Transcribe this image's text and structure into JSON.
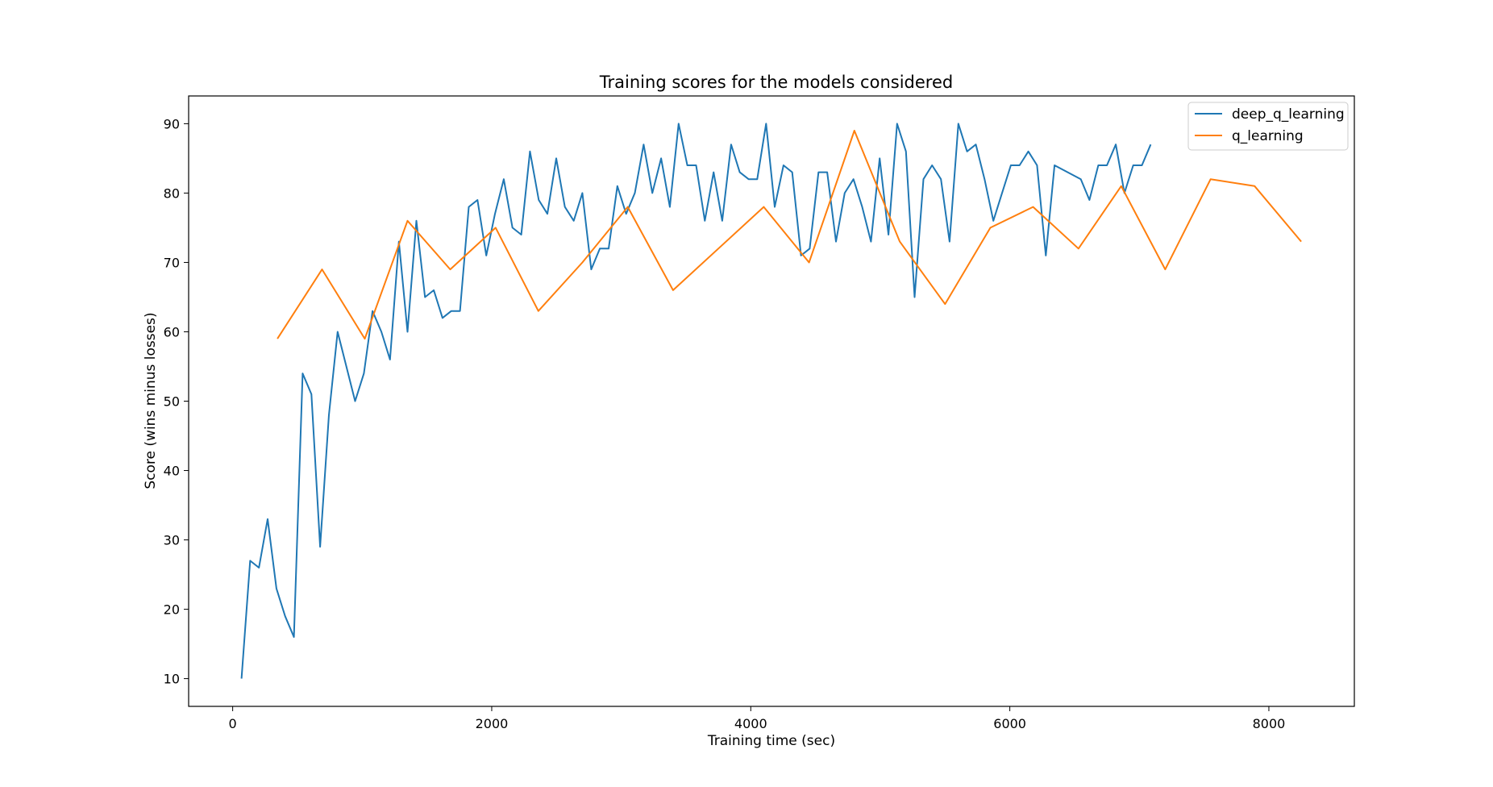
{
  "chart_data": {
    "type": "line",
    "title": "Training scores for the models considered",
    "xlabel": "Training time (sec)",
    "ylabel": "Score (wins minus losses)",
    "xlim": [
      -340,
      8660
    ],
    "ylim": [
      6,
      94
    ],
    "xticks": [
      0,
      2000,
      4000,
      6000,
      8000
    ],
    "yticks": [
      10,
      20,
      30,
      40,
      50,
      60,
      70,
      80,
      90
    ],
    "grid": false,
    "legend_position": "top-right",
    "series": [
      {
        "name": "deep_q_learning",
        "color": "#1f77b4",
        "x": [
          68,
          135,
          203,
          270,
          338,
          405,
          473,
          540,
          608,
          675,
          743,
          810,
          945,
          1013,
          1080,
          1148,
          1215,
          1283,
          1350,
          1418,
          1485,
          1553,
          1620,
          1688,
          1755,
          1823,
          1890,
          1958,
          2025,
          2093,
          2160,
          2228,
          2295,
          2363,
          2430,
          2498,
          2565,
          2633,
          2700,
          2768,
          2835,
          2903,
          2970,
          3038,
          3105,
          3173,
          3240,
          3308,
          3375,
          3443,
          3510,
          3578,
          3645,
          3713,
          3780,
          3848,
          3915,
          3983,
          4050,
          4118,
          4185,
          4253,
          4320,
          4388,
          4455,
          4523,
          4590,
          4658,
          4725,
          4793,
          4860,
          4928,
          4995,
          5063,
          5130,
          5198,
          5265,
          5333,
          5400,
          5468,
          5535,
          5603,
          5670,
          5738,
          5805,
          5873,
          5940,
          6008,
          6075,
          6143,
          6210,
          6278,
          6345,
          6548,
          6615,
          6683,
          6750,
          6818,
          6885,
          6953,
          7020,
          7088
        ],
        "y": [
          10,
          27,
          26,
          33,
          23,
          19,
          16,
          54,
          51,
          29,
          48,
          60,
          50,
          54,
          63,
          60,
          56,
          73,
          60,
          76,
          65,
          66,
          62,
          63,
          63,
          78,
          79,
          71,
          77,
          82,
          75,
          74,
          86,
          79,
          77,
          85,
          78,
          76,
          80,
          69,
          72,
          72,
          81,
          77,
          80,
          87,
          80,
          85,
          78,
          90,
          84,
          84,
          76,
          83,
          76,
          87,
          83,
          82,
          82,
          90,
          78,
          84,
          83,
          71,
          72,
          83,
          83,
          73,
          80,
          82,
          78,
          73,
          85,
          74,
          90,
          86,
          65,
          82,
          84,
          82,
          73,
          90,
          86,
          87,
          82,
          76,
          80,
          84,
          84,
          86,
          84,
          71,
          84,
          82,
          79,
          84,
          84,
          87,
          80,
          84,
          84,
          87
        ]
      },
      {
        "name": "q_learning",
        "color": "#ff7f0e",
        "x": [
          345,
          690,
          1020,
          1350,
          1680,
          2030,
          2360,
          2700,
          3050,
          3400,
          3750,
          4100,
          4450,
          4800,
          5150,
          5500,
          5850,
          6180,
          6530,
          6860,
          7200,
          7550,
          7890,
          8250
        ],
        "y": [
          59,
          69,
          59,
          76,
          69,
          75,
          63,
          70,
          78,
          66,
          72,
          78,
          70,
          89,
          73,
          64,
          75,
          78,
          72,
          81,
          69,
          82,
          81,
          73
        ]
      }
    ]
  }
}
